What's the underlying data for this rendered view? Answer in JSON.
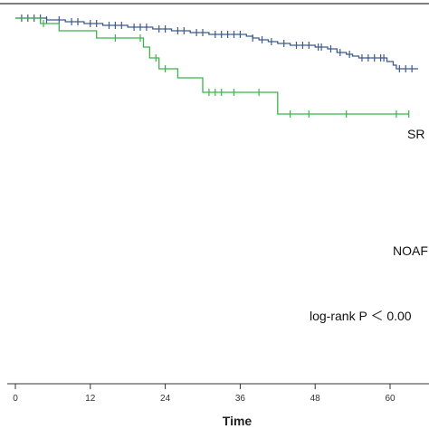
{
  "chart_data": {
    "type": "line",
    "title": "",
    "xlabel": "Time",
    "ylabel": "",
    "xlim": [
      0,
      63
    ],
    "ylim": [
      0.42,
      1.0
    ],
    "xticks": [
      "0",
      "12",
      "24",
      "36",
      "48",
      "60"
    ],
    "grid": false,
    "annotation": "log-rank P ＜ 0.00",
    "series": [
      {
        "name": "SR",
        "color": "#3d5a8c",
        "steps": [
          {
            "x": 0,
            "y": 1.0
          },
          {
            "x": 5,
            "y": 0.995
          },
          {
            "x": 8,
            "y": 0.99
          },
          {
            "x": 11,
            "y": 0.985
          },
          {
            "x": 14,
            "y": 0.98
          },
          {
            "x": 18,
            "y": 0.975
          },
          {
            "x": 22,
            "y": 0.97
          },
          {
            "x": 25,
            "y": 0.965
          },
          {
            "x": 28,
            "y": 0.96
          },
          {
            "x": 31,
            "y": 0.955
          },
          {
            "x": 37,
            "y": 0.95
          },
          {
            "x": 38,
            "y": 0.945
          },
          {
            "x": 39,
            "y": 0.94
          },
          {
            "x": 40.5,
            "y": 0.935
          },
          {
            "x": 42,
            "y": 0.93
          },
          {
            "x": 44,
            "y": 0.925
          },
          {
            "x": 48,
            "y": 0.92
          },
          {
            "x": 50,
            "y": 0.915
          },
          {
            "x": 51.5,
            "y": 0.905
          },
          {
            "x": 53,
            "y": 0.9
          },
          {
            "x": 54,
            "y": 0.895
          },
          {
            "x": 55,
            "y": 0.89
          },
          {
            "x": 59.5,
            "y": 0.88
          },
          {
            "x": 60.5,
            "y": 0.87
          },
          {
            "x": 61,
            "y": 0.86
          },
          {
            "x": 64.5,
            "y": 0.86
          }
        ],
        "censored": [
          1,
          2,
          3,
          4,
          5,
          7,
          9,
          10,
          12,
          13,
          15,
          16,
          17,
          19,
          20,
          21,
          23,
          24,
          26,
          27,
          29,
          30,
          32,
          33,
          34,
          35,
          36,
          38,
          39.5,
          41,
          43,
          45,
          46,
          47,
          48.5,
          49,
          50.5,
          52,
          53.5,
          55.5,
          56.5,
          57.5,
          58.5,
          59,
          61.5,
          62.5,
          63.5
        ]
      },
      {
        "name": "NOAF",
        "color": "#3bb54a",
        "steps": [
          {
            "x": 0,
            "y": 1.0
          },
          {
            "x": 4,
            "y": 0.985
          },
          {
            "x": 7,
            "y": 0.965
          },
          {
            "x": 13,
            "y": 0.945
          },
          {
            "x": 20.5,
            "y": 0.92
          },
          {
            "x": 21.5,
            "y": 0.89
          },
          {
            "x": 23,
            "y": 0.86
          },
          {
            "x": 26,
            "y": 0.835
          },
          {
            "x": 30,
            "y": 0.795
          },
          {
            "x": 42,
            "y": 0.735
          },
          {
            "x": 63,
            "y": 0.735
          }
        ],
        "censored": [
          4.5,
          16,
          20,
          22.5,
          24,
          31,
          32,
          33,
          35,
          39,
          44,
          47,
          53,
          61,
          63
        ]
      }
    ]
  }
}
